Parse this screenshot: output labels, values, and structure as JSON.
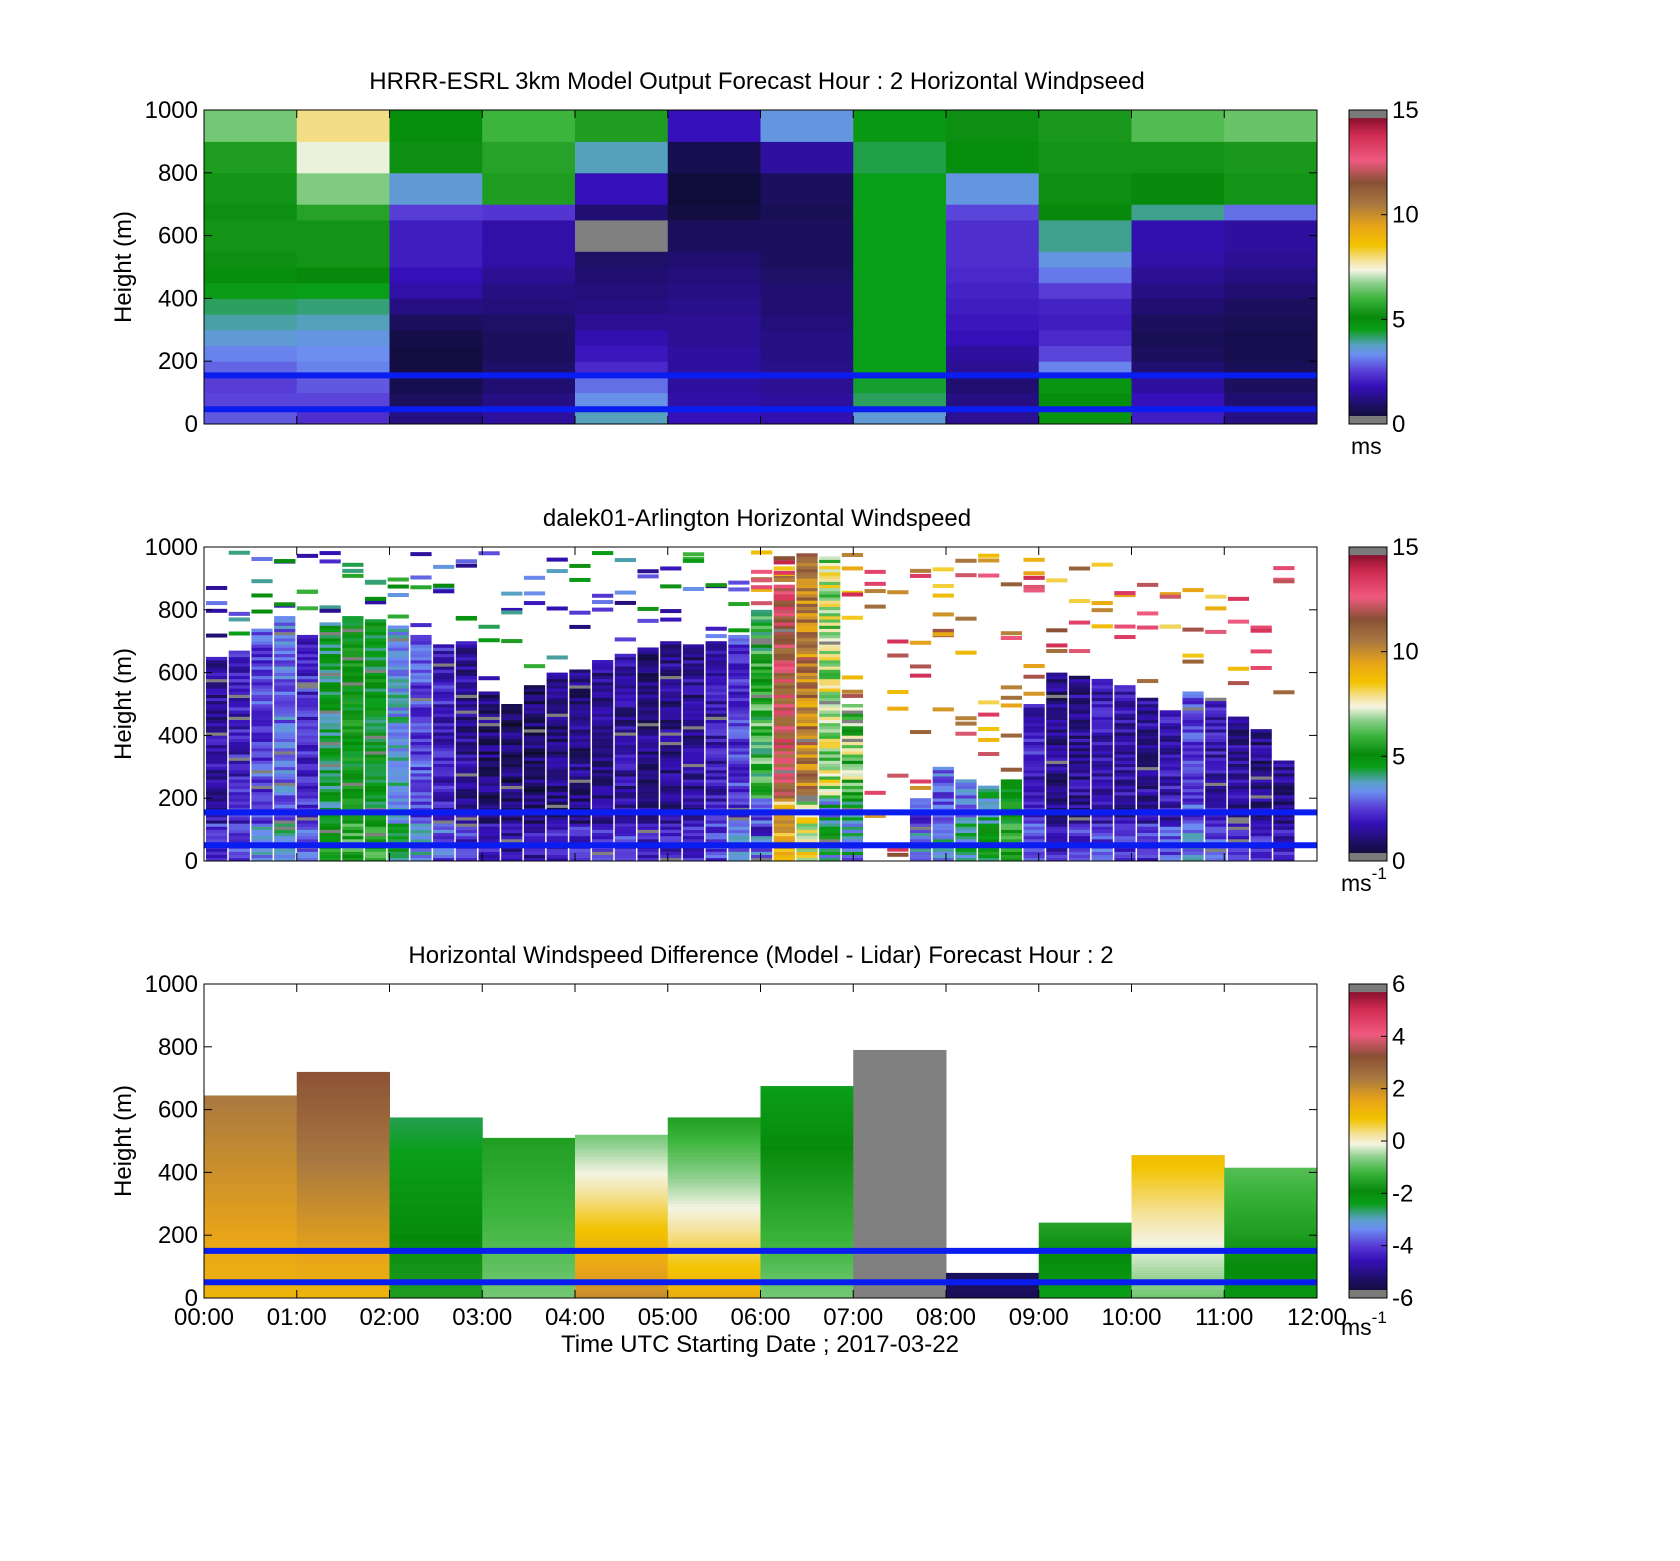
{
  "figure": {
    "xlabel": "Time UTC  Starting Date ; 2017-03-22",
    "x_tick_labels": [
      "00:00",
      "01:00",
      "02:00",
      "03:00",
      "04:00",
      "05:00",
      "06:00",
      "07:00",
      "08:00",
      "09:00",
      "10:00",
      "11:00",
      "12:00"
    ]
  },
  "chart_data": [
    {
      "type": "heatmap",
      "title": "HRRR-ESRL 3km Model Output   Forecast Hour : 2 Horizontal Windpseed",
      "ylabel": "Height (m)",
      "y_tick_labels": [
        "0",
        "200",
        "400",
        "600",
        "800",
        "1000"
      ],
      "ylim": [
        0,
        1000
      ],
      "xlim": [
        "00:00",
        "12:00"
      ],
      "colorbar": {
        "range": [
          0,
          15
        ],
        "ticks": [
          "0",
          "5",
          "10",
          "15"
        ],
        "unit": "ms",
        "unit_exp": ""
      },
      "overlay_lines_height_m": [
        155,
        47
      ],
      "overlay_color": "#0a1df0",
      "note": "12 hourly columns; values m/s listed bottom-to-top at heights",
      "columns": [
        [
          [
            0,
            2.8
          ],
          [
            50,
            2.6
          ],
          [
            100,
            2.5
          ],
          [
            150,
            2.9
          ],
          [
            200,
            3.2
          ],
          [
            250,
            3.6
          ],
          [
            300,
            3.9
          ],
          [
            350,
            4.2
          ],
          [
            400,
            4.6
          ],
          [
            450,
            5.0
          ],
          [
            500,
            5.2
          ],
          [
            550,
            5.3
          ],
          [
            650,
            5.2
          ],
          [
            700,
            5.3
          ],
          [
            800,
            5.5
          ],
          [
            900,
            6.5
          ]
        ],
        [
          [
            0,
            2.3
          ],
          [
            50,
            2.6
          ],
          [
            100,
            2.8
          ],
          [
            150,
            3.2
          ],
          [
            200,
            3.3
          ],
          [
            250,
            3.5
          ],
          [
            300,
            3.8
          ],
          [
            350,
            4.1
          ],
          [
            400,
            4.5
          ],
          [
            450,
            5.1
          ],
          [
            500,
            5.3
          ],
          [
            550,
            5.3
          ],
          [
            650,
            5.6
          ],
          [
            700,
            6.6
          ],
          [
            800,
            7.3
          ],
          [
            900,
            7.9
          ]
        ],
        [
          [
            0,
            1.2
          ],
          [
            50,
            0.8
          ],
          [
            100,
            0.6
          ],
          [
            150,
            0.4
          ],
          [
            200,
            0.4
          ],
          [
            250,
            0.5
          ],
          [
            300,
            0.8
          ],
          [
            350,
            1.2
          ],
          [
            400,
            1.6
          ],
          [
            450,
            1.8
          ],
          [
            500,
            2.0
          ],
          [
            550,
            2.0
          ],
          [
            650,
            2.5
          ],
          [
            700,
            3.6
          ],
          [
            800,
            5.2
          ],
          [
            900,
            5.0
          ]
        ],
        [
          [
            0,
            1.5
          ],
          [
            50,
            1.2
          ],
          [
            100,
            1.0
          ],
          [
            150,
            0.9
          ],
          [
            200,
            0.8
          ],
          [
            250,
            0.8
          ],
          [
            300,
            0.9
          ],
          [
            350,
            1.1
          ],
          [
            400,
            1.2
          ],
          [
            450,
            1.4
          ],
          [
            500,
            1.6
          ],
          [
            550,
            1.6
          ],
          [
            650,
            2.4
          ],
          [
            700,
            5.5
          ],
          [
            800,
            5.6
          ],
          [
            900,
            6.0
          ]
        ],
        [
          [
            0,
            3.8
          ],
          [
            50,
            3.4
          ],
          [
            100,
            3.0
          ],
          [
            150,
            2.2
          ],
          [
            200,
            1.9
          ],
          [
            250,
            1.7
          ],
          [
            300,
            1.4
          ],
          [
            350,
            1.2
          ],
          [
            400,
            1.1
          ],
          [
            450,
            1.0
          ],
          [
            500,
            0.9
          ],
          [
            550,
            15.5
          ],
          [
            650,
            1.0
          ],
          [
            700,
            1.8
          ],
          [
            800,
            3.8
          ],
          [
            900,
            5.5
          ]
        ],
        [
          [
            0,
            1.8
          ],
          [
            50,
            1.6
          ],
          [
            100,
            1.5
          ],
          [
            150,
            1.5
          ],
          [
            200,
            1.5
          ],
          [
            250,
            1.4
          ],
          [
            300,
            1.4
          ],
          [
            350,
            1.3
          ],
          [
            400,
            1.2
          ],
          [
            450,
            1.1
          ],
          [
            500,
            1.0
          ],
          [
            550,
            0.8
          ],
          [
            650,
            0.4
          ],
          [
            700,
            0.3
          ],
          [
            800,
            0.6
          ],
          [
            900,
            1.8
          ]
        ],
        [
          [
            0,
            1.7
          ],
          [
            50,
            1.5
          ],
          [
            100,
            1.4
          ],
          [
            150,
            1.3
          ],
          [
            200,
            1.2
          ],
          [
            250,
            1.2
          ],
          [
            300,
            1.1
          ],
          [
            350,
            1.0
          ],
          [
            400,
            1.0
          ],
          [
            450,
            0.9
          ],
          [
            500,
            0.8
          ],
          [
            550,
            0.8
          ],
          [
            650,
            0.7
          ],
          [
            700,
            0.8
          ],
          [
            800,
            1.5
          ],
          [
            900,
            3.5
          ]
        ],
        [
          [
            0,
            3.6
          ],
          [
            50,
            4.2
          ],
          [
            100,
            4.4
          ],
          [
            150,
            4.5
          ],
          [
            200,
            4.5
          ],
          [
            250,
            4.5
          ],
          [
            300,
            4.5
          ],
          [
            350,
            4.5
          ],
          [
            400,
            4.5
          ],
          [
            450,
            4.5
          ],
          [
            500,
            4.5
          ],
          [
            550,
            4.5
          ],
          [
            650,
            4.5
          ],
          [
            700,
            4.5
          ],
          [
            800,
            4.3
          ],
          [
            900,
            4.7
          ]
        ],
        [
          [
            0,
            1.4
          ],
          [
            50,
            1.2
          ],
          [
            100,
            1.0
          ],
          [
            150,
            1.4
          ],
          [
            200,
            1.5
          ],
          [
            250,
            1.8
          ],
          [
            300,
            1.9
          ],
          [
            350,
            2.0
          ],
          [
            400,
            2.1
          ],
          [
            450,
            2.2
          ],
          [
            500,
            2.3
          ],
          [
            550,
            2.3
          ],
          [
            650,
            2.6
          ],
          [
            700,
            3.5
          ],
          [
            800,
            5.0
          ],
          [
            900,
            5.2
          ]
        ],
        [
          [
            0,
            4.8
          ],
          [
            50,
            5.0
          ],
          [
            100,
            4.8
          ],
          [
            150,
            3.2
          ],
          [
            200,
            2.6
          ],
          [
            250,
            2.2
          ],
          [
            300,
            2.0
          ],
          [
            350,
            2.1
          ],
          [
            400,
            2.5
          ],
          [
            450,
            3.1
          ],
          [
            500,
            3.5
          ],
          [
            550,
            4.0
          ],
          [
            650,
            5.1
          ],
          [
            700,
            5.2
          ],
          [
            800,
            5.3
          ],
          [
            900,
            5.4
          ]
        ],
        [
          [
            0,
            2.0
          ],
          [
            50,
            1.8
          ],
          [
            100,
            1.5
          ],
          [
            150,
            1.0
          ],
          [
            200,
            0.8
          ],
          [
            250,
            0.7
          ],
          [
            300,
            0.8
          ],
          [
            350,
            1.0
          ],
          [
            400,
            1.2
          ],
          [
            450,
            1.4
          ],
          [
            500,
            1.6
          ],
          [
            550,
            1.7
          ],
          [
            650,
            4.0
          ],
          [
            700,
            5.1
          ],
          [
            800,
            5.3
          ],
          [
            900,
            6.2
          ]
        ],
        [
          [
            0,
            1.2
          ],
          [
            50,
            1.0
          ],
          [
            100,
            0.8
          ],
          [
            150,
            0.7
          ],
          [
            200,
            0.6
          ],
          [
            250,
            0.6
          ],
          [
            300,
            0.7
          ],
          [
            350,
            0.8
          ],
          [
            400,
            1.0
          ],
          [
            450,
            1.2
          ],
          [
            500,
            1.4
          ],
          [
            550,
            1.5
          ],
          [
            650,
            3.0
          ],
          [
            700,
            5.3
          ],
          [
            800,
            5.4
          ],
          [
            900,
            6.4
          ]
        ]
      ]
    },
    {
      "type": "heatmap",
      "title": "dalek01-Arlington  Horizontal Windspeed",
      "ylabel": "Height (m)",
      "y_tick_labels": [
        "0",
        "200",
        "400",
        "600",
        "800",
        "1000"
      ],
      "ylim": [
        0,
        1000
      ],
      "xlim": [
        "00:00",
        "12:00"
      ],
      "colorbar": {
        "range": [
          0,
          15
        ],
        "ticks": [
          "0",
          "5",
          "10",
          "15"
        ],
        "unit": "ms",
        "unit_exp": "-1"
      },
      "overlay_lines_height_m": [
        155,
        50
      ],
      "overlay_color": "#0a1df0",
      "note": "48 columns (15-min); each column: top of valid data (m), base value m/s, variability; white = no data",
      "columns": [
        [
          650,
          1.6
        ],
        [
          670,
          2.0
        ],
        [
          740,
          2.6
        ],
        [
          780,
          3.0
        ],
        [
          720,
          2.2
        ],
        [
          760,
          4.4
        ],
        [
          780,
          5.0
        ],
        [
          770,
          4.8
        ],
        [
          750,
          3.6
        ],
        [
          720,
          2.6
        ],
        [
          690,
          2.0
        ],
        [
          700,
          1.5
        ],
        [
          540,
          1.0
        ],
        [
          500,
          0.8
        ],
        [
          560,
          0.9
        ],
        [
          600,
          1.1
        ],
        [
          610,
          1.2
        ],
        [
          640,
          1.4
        ],
        [
          660,
          1.5
        ],
        [
          680,
          1.2
        ],
        [
          700,
          1.3
        ],
        [
          690,
          1.4
        ],
        [
          700,
          1.8
        ],
        [
          720,
          2.4
        ],
        [
          800,
          5.5
        ],
        [
          880,
          12.0
        ],
        [
          980,
          10.5
        ],
        [
          970,
          7.0
        ],
        [
          500,
          6.5
        ],
        [
          0,
          0
        ],
        [
          0,
          0
        ],
        [
          200,
          2.5
        ],
        [
          300,
          2.8
        ],
        [
          260,
          3.2
        ],
        [
          240,
          4.0
        ],
        [
          260,
          5.0
        ],
        [
          500,
          2.0
        ],
        [
          600,
          1.2
        ],
        [
          590,
          1.4
        ],
        [
          580,
          1.8
        ],
        [
          560,
          1.6
        ],
        [
          520,
          1.5
        ],
        [
          480,
          1.8
        ],
        [
          540,
          2.6
        ],
        [
          520,
          1.8
        ],
        [
          460,
          1.4
        ],
        [
          420,
          1.3
        ],
        [
          320,
          1.2
        ]
      ]
    },
    {
      "type": "heatmap",
      "title": "Horizontal Windspeed Difference (Model - Lidar) Forecast Hour : 2",
      "ylabel": "Height (m)",
      "y_tick_labels": [
        "0",
        "200",
        "400",
        "600",
        "800",
        "1000"
      ],
      "ylim": [
        0,
        1000
      ],
      "xlim": [
        "00:00",
        "12:00"
      ],
      "xlabel": "Time UTC  Starting Date ; 2017-03-22",
      "colorbar": {
        "range": [
          -6,
          6
        ],
        "ticks": [
          "-6",
          "-4",
          "-2",
          "0",
          "2",
          "4",
          "6"
        ],
        "unit": "ms",
        "unit_exp": "-1"
      },
      "overlay_lines_height_m": [
        150,
        50
      ],
      "overlay_color": "#0a1df0",
      "note": "12 hourly columns; [top_m, base_value, top_value]",
      "columns": [
        [
          645,
          1.2,
          2.4
        ],
        [
          720,
          1.2,
          3.2
        ],
        [
          575,
          -1.6,
          -2.6
        ],
        [
          510,
          -0.8,
          -1.6
        ],
        [
          520,
          2.0,
          -0.8
        ],
        [
          575,
          1.3,
          -1.6
        ],
        [
          675,
          -0.8,
          -2.4
        ],
        [
          790,
          -6.2,
          7.0
        ],
        [
          80,
          -5.4,
          -5.4
        ],
        [
          240,
          -2.4,
          -1.5
        ],
        [
          455,
          -0.8,
          1.0
        ],
        [
          415,
          -2.2,
          -1.0
        ]
      ]
    }
  ]
}
